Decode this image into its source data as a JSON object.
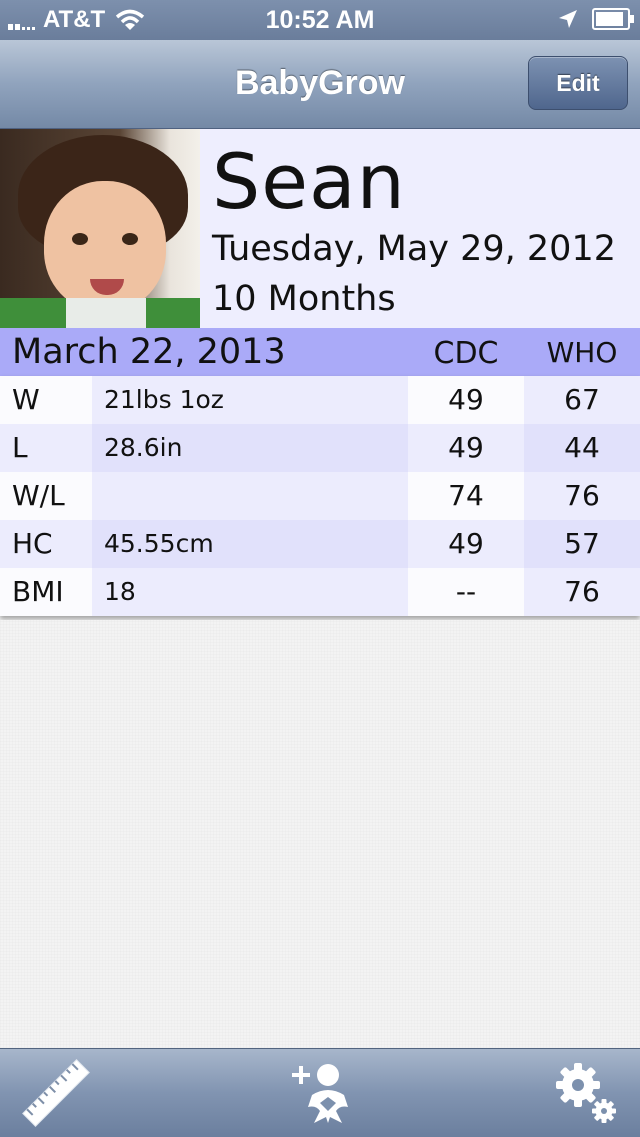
{
  "status_bar": {
    "carrier": "AT&T",
    "time": "10:52 AM"
  },
  "nav": {
    "title": "BabyGrow",
    "edit_label": "Edit"
  },
  "profile": {
    "name": "Sean",
    "birth_date": "Tuesday, May 29, 2012",
    "age": "10 Months"
  },
  "stats": {
    "date": "March 22, 2013",
    "cdc_header": "CDC",
    "who_header": "WHO",
    "rows": [
      {
        "label": "W",
        "value": "21lbs 1oz",
        "cdc": "49",
        "who": "67"
      },
      {
        "label": "L",
        "value": "28.6in",
        "cdc": "49",
        "who": "44"
      },
      {
        "label": "W/L",
        "value": "",
        "cdc": "74",
        "who": "76"
      },
      {
        "label": "HC",
        "value": "45.55cm",
        "cdc": "49",
        "who": "57"
      },
      {
        "label": "BMI",
        "value": "18",
        "cdc": "--",
        "who": "76"
      }
    ]
  },
  "tab_bar": {
    "icons": [
      "ruler-icon",
      "add-baby-icon",
      "settings-gear-icon"
    ]
  }
}
